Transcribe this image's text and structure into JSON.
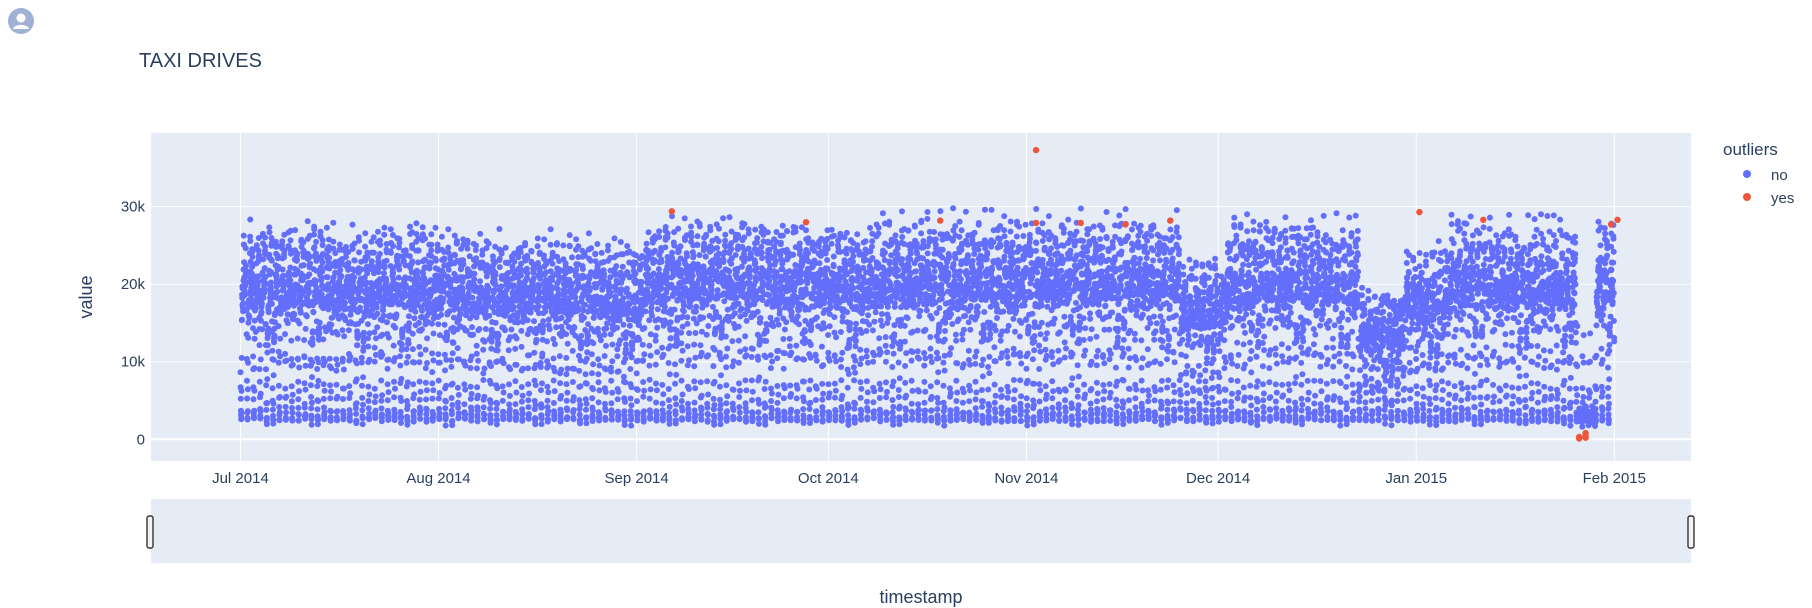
{
  "title": "TAXI DRIVES",
  "colors": {
    "plot_bg": "#e5ecf6",
    "grid": "#ffffff",
    "series_no": "#636efa",
    "series_yes": "#ef553b",
    "text": "#2a3f5f"
  },
  "icons": {
    "avatar": "user-avatar-icon"
  },
  "chart_data": {
    "type": "scatter",
    "title": "TAXI DRIVES",
    "xlabel": "timestamp",
    "ylabel": "value",
    "x_range": [
      "2014-06-17",
      "2015-02-13"
    ],
    "ylim": [
      -2800,
      39500
    ],
    "x_ticks": [
      {
        "date": "2014-07-01",
        "label": "Jul 2014"
      },
      {
        "date": "2014-08-01",
        "label": "Aug 2014"
      },
      {
        "date": "2014-09-01",
        "label": "Sep 2014"
      },
      {
        "date": "2014-10-01",
        "label": "Oct 2014"
      },
      {
        "date": "2014-11-01",
        "label": "Nov 2014"
      },
      {
        "date": "2014-12-01",
        "label": "Dec 2014"
      },
      {
        "date": "2015-01-01",
        "label": "Jan 2015"
      },
      {
        "date": "2015-02-01",
        "label": "Feb 2015"
      }
    ],
    "y_ticks": [
      {
        "value": 0,
        "label": "0"
      },
      {
        "value": 10000,
        "label": "10k"
      },
      {
        "value": 20000,
        "label": "20k"
      },
      {
        "value": 30000,
        "label": "30k"
      }
    ],
    "grid": true,
    "legend": {
      "title": "outliers",
      "position": "top-right"
    },
    "range_slider": true,
    "series": [
      {
        "name": "no",
        "color": "#636efa",
        "note_sampling": "half-hourly readings from 2014-07-01 to 2015-01-31; daily cycle between ~2k (night) and ~18-27k (evening peak)",
        "daily_profile": [
          9500,
          7000,
          5000,
          3800,
          3000,
          2500,
          2600,
          3500,
          6000,
          10000,
          14000,
          16500,
          17000,
          17500,
          18000,
          17500,
          18000,
          18500,
          17000,
          15000,
          17500,
          19000,
          20000,
          22000,
          24000,
          25500,
          24000,
          22500,
          21000,
          20000,
          19000,
          18500,
          19000,
          18500,
          18000,
          18500,
          18000,
          19000,
          20500,
          22000,
          23000,
          24000,
          23500,
          21500,
          19000,
          16000,
          13500,
          11000
        ],
        "weekly_peaks": [
          {
            "week_start": "2014-07-01",
            "peak": 25800
          },
          {
            "week_start": "2014-07-08",
            "peak": 26200
          },
          {
            "week_start": "2014-07-15",
            "peak": 25500
          },
          {
            "week_start": "2014-07-22",
            "peak": 26100
          },
          {
            "week_start": "2014-07-29",
            "peak": 25700
          },
          {
            "week_start": "2014-08-05",
            "peak": 24800
          },
          {
            "week_start": "2014-08-12",
            "peak": 25200
          },
          {
            "week_start": "2014-08-19",
            "peak": 24500
          },
          {
            "week_start": "2014-08-26",
            "peak": 23800
          },
          {
            "week_start": "2014-09-02",
            "peak": 27000
          },
          {
            "week_start": "2014-09-09",
            "peak": 27300
          },
          {
            "week_start": "2014-09-16",
            "peak": 27100
          },
          {
            "week_start": "2014-09-23",
            "peak": 26800
          },
          {
            "week_start": "2014-09-30",
            "peak": 26500
          },
          {
            "week_start": "2014-10-07",
            "peak": 26900
          },
          {
            "week_start": "2014-10-14",
            "peak": 27500
          },
          {
            "week_start": "2014-10-21",
            "peak": 27200
          },
          {
            "week_start": "2014-10-28",
            "peak": 27000
          },
          {
            "week_start": "2014-11-04",
            "peak": 27400
          },
          {
            "week_start": "2014-11-11",
            "peak": 27100
          },
          {
            "week_start": "2014-11-18",
            "peak": 27300
          },
          {
            "week_start": "2014-11-25",
            "peak": 22000
          },
          {
            "week_start": "2014-12-02",
            "peak": 26800
          },
          {
            "week_start": "2014-12-09",
            "peak": 26900
          },
          {
            "week_start": "2014-12-16",
            "peak": 26700
          },
          {
            "week_start": "2014-12-23",
            "peak": 18000
          },
          {
            "week_start": "2014-12-30",
            "peak": 23500
          },
          {
            "week_start": "2015-01-06",
            "peak": 27000
          },
          {
            "week_start": "2015-01-13",
            "peak": 26500
          },
          {
            "week_start": "2015-01-20",
            "peak": 26400
          },
          {
            "week_start": "2015-01-27",
            "peak": 27000
          }
        ],
        "anomaly_low": {
          "start": "2015-01-26",
          "end": "2015-01-28",
          "min_value": 0
        }
      },
      {
        "name": "yes",
        "color": "#ef553b",
        "points": [
          {
            "x": "2014-09-06",
            "y": 29400
          },
          {
            "x": "2014-09-27",
            "y": 28000
          },
          {
            "x": "2014-10-18",
            "y": 28200
          },
          {
            "x": "2014-11-02",
            "y": 37300
          },
          {
            "x": "2014-11-02",
            "y": 27900
          },
          {
            "x": "2014-11-09",
            "y": 27900
          },
          {
            "x": "2014-11-16",
            "y": 27700
          },
          {
            "x": "2014-11-23",
            "y": 28200
          },
          {
            "x": "2015-01-01",
            "y": 29300
          },
          {
            "x": "2015-01-11",
            "y": 28300
          },
          {
            "x": "2015-01-26",
            "y": 100
          },
          {
            "x": "2015-01-26",
            "y": 300
          },
          {
            "x": "2015-01-27",
            "y": 500
          },
          {
            "x": "2015-01-27",
            "y": 200
          },
          {
            "x": "2015-01-27",
            "y": 800
          },
          {
            "x": "2015-01-31",
            "y": 27700
          },
          {
            "x": "2015-02-01",
            "y": 28300
          }
        ]
      }
    ]
  }
}
